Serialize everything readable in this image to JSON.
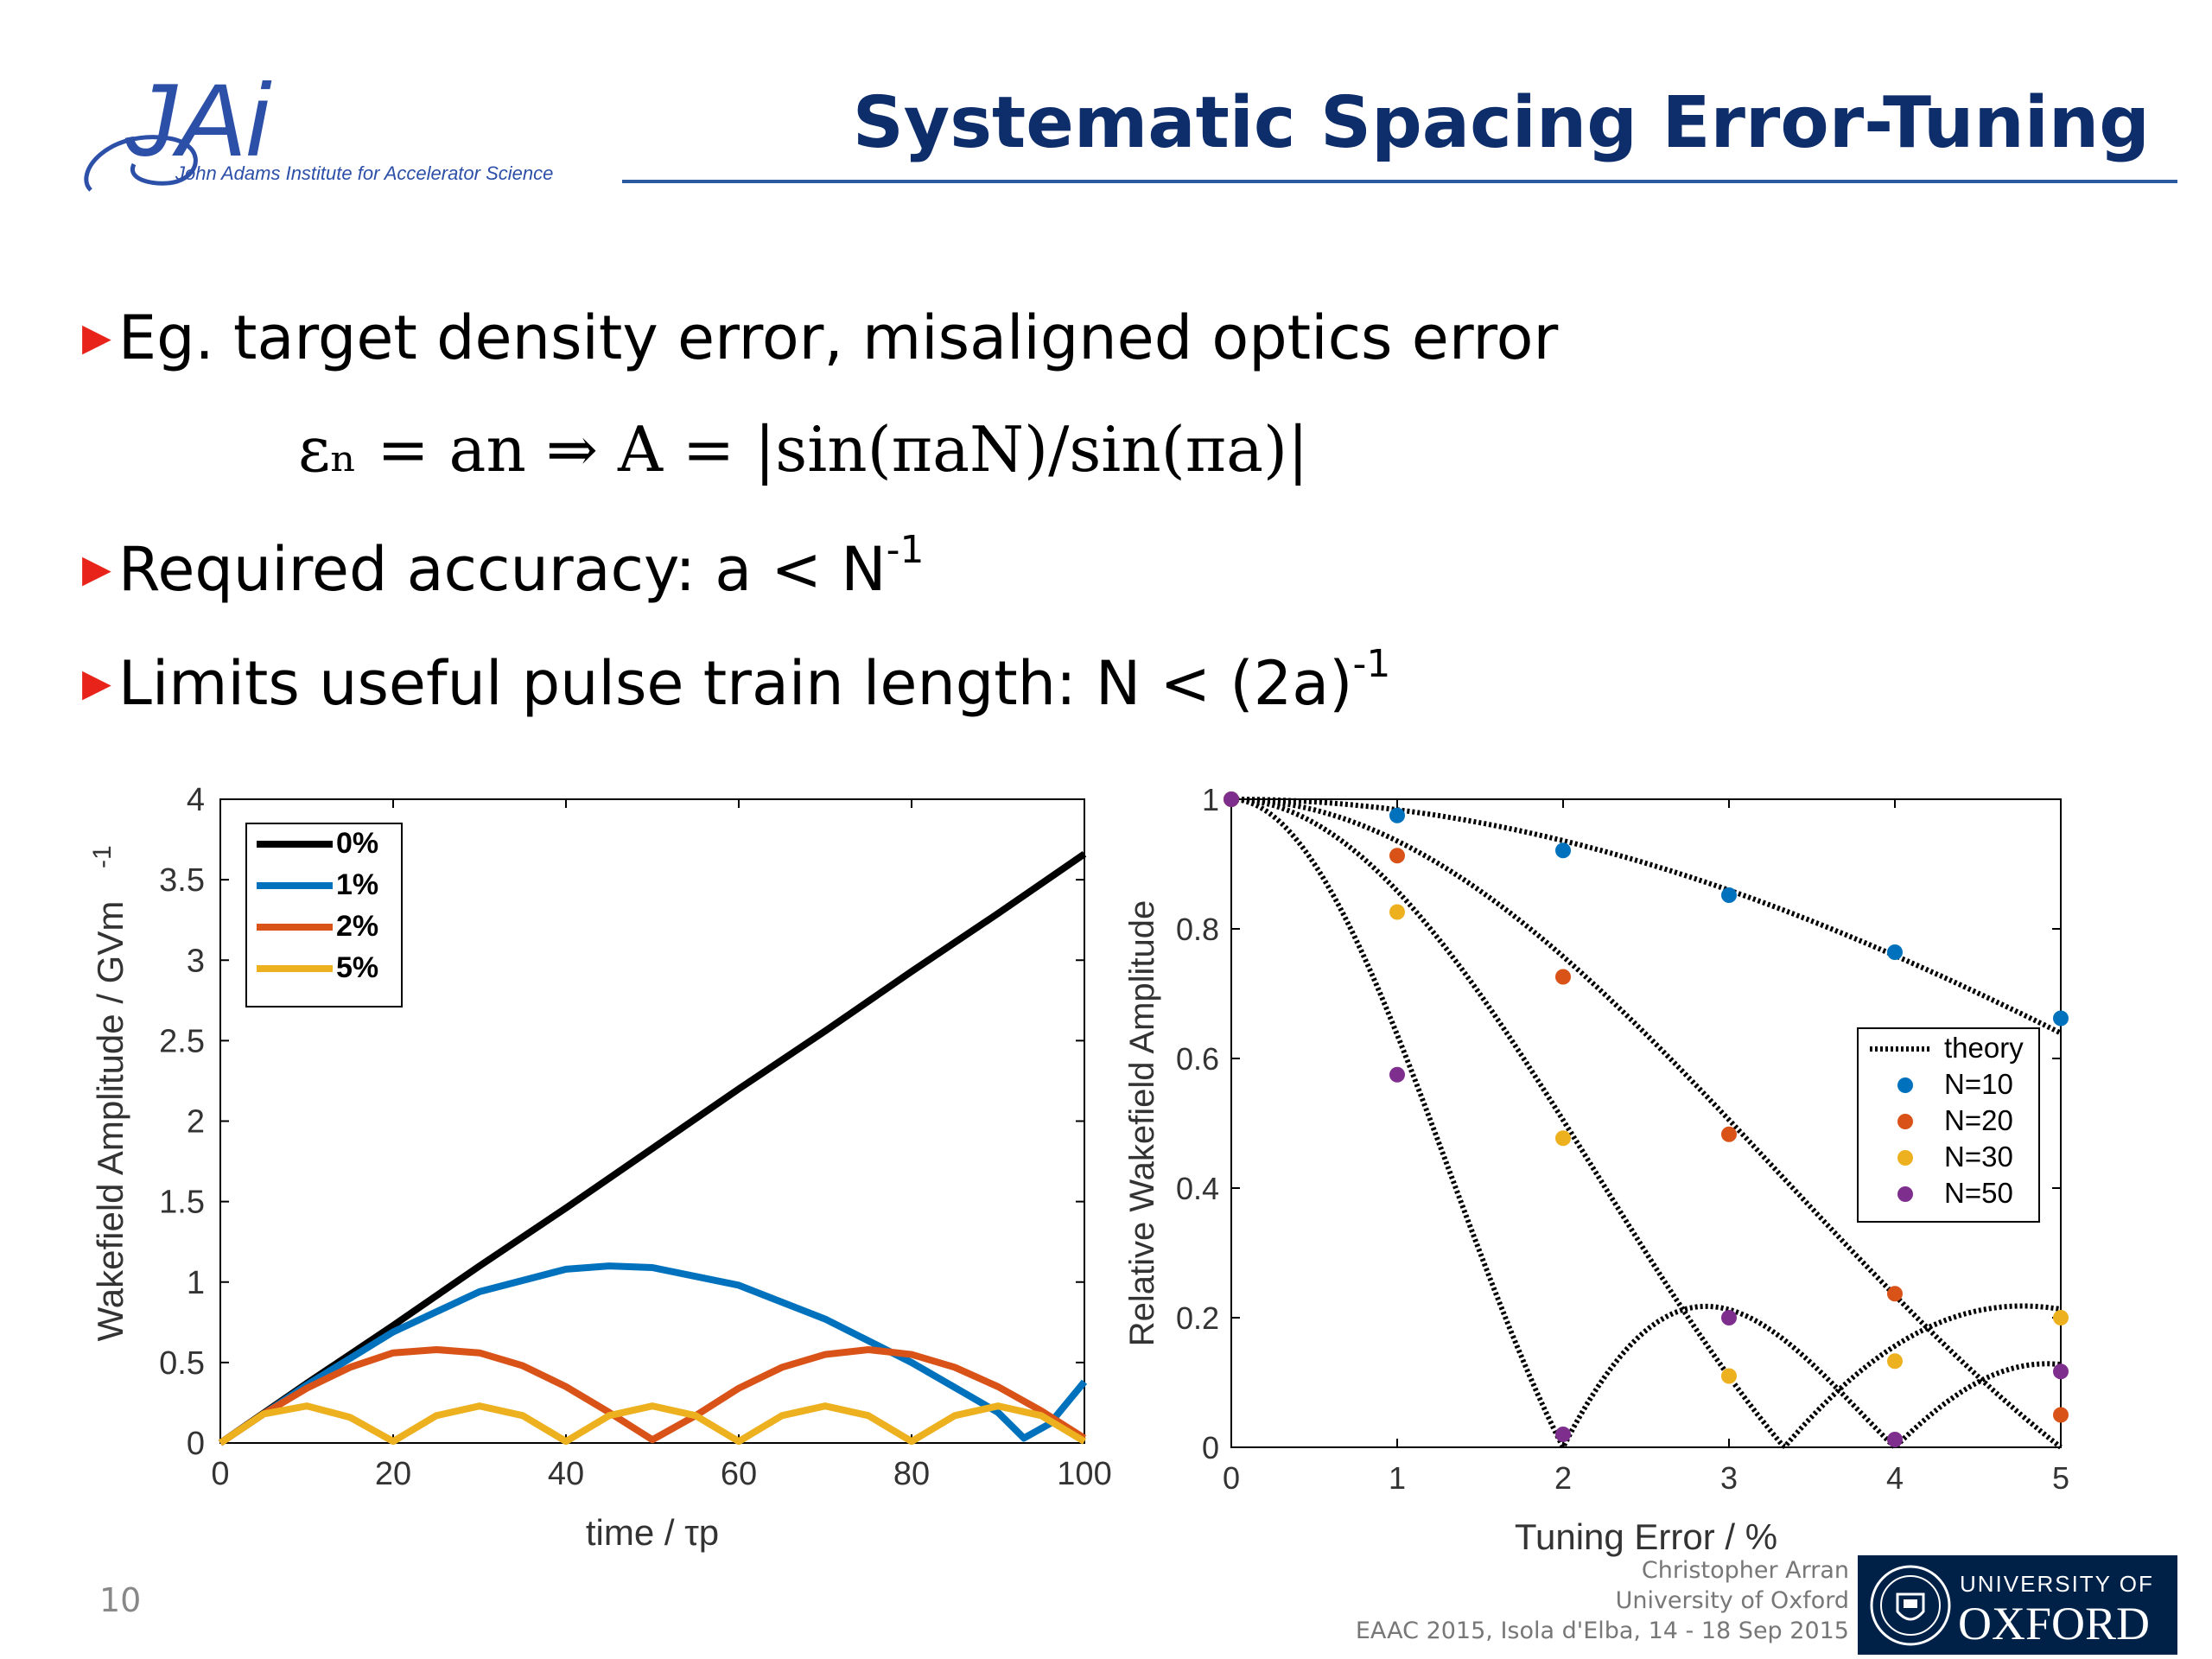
{
  "header": {
    "logo_text": "JAi",
    "logo_subtitle": "John Adams Institute for Accelerator Science",
    "title": "Systematic Spacing Error-Tuning"
  },
  "bullets": [
    {
      "text": "Eg. target density error, misaligned optics error",
      "superscript": ""
    },
    {
      "text": "Required accuracy: a < N",
      "superscript": "-1"
    },
    {
      "text": "Limits useful pulse train length: N < (2a)",
      "superscript": "-1"
    }
  ],
  "equation": {
    "text": "εₙ = an  ⇒ A = |sin(πaN)/sin(πa)|"
  },
  "chart_data": [
    {
      "type": "line",
      "title": "",
      "xlabel": "time /  τp",
      "ylabel": "Wakefield Amplitude / GVm",
      "ylabel_superscript": "-1",
      "xlim": [
        0,
        100
      ],
      "ylim": [
        0,
        4
      ],
      "xticks": [
        "0",
        "20",
        "40",
        "60",
        "80",
        "100"
      ],
      "yticks": [
        "0",
        "0.5",
        "1",
        "1.5",
        "2",
        "2.5",
        "3",
        "3.5",
        "4"
      ],
      "grid": false,
      "legend_position": "top-left",
      "series": [
        {
          "name": "0%",
          "color": "#000000",
          "x": [
            0,
            10,
            20,
            30,
            40,
            50,
            60,
            70,
            80,
            90,
            100
          ],
          "values": [
            0,
            0.37,
            0.73,
            1.1,
            1.46,
            1.83,
            2.2,
            2.56,
            2.93,
            3.29,
            3.66
          ]
        },
        {
          "name": "1%",
          "color": "#0072bd",
          "x": [
            0,
            10,
            20,
            30,
            40,
            45,
            50,
            60,
            70,
            80,
            90,
            93,
            96,
            100
          ],
          "values": [
            0,
            0.36,
            0.69,
            0.94,
            1.08,
            1.1,
            1.09,
            0.98,
            0.77,
            0.5,
            0.19,
            0.03,
            0.12,
            0.38
          ]
        },
        {
          "name": "2%",
          "color": "#d95319",
          "x": [
            0,
            5,
            10,
            15,
            20,
            25,
            30,
            35,
            40,
            45,
            50,
            55,
            60,
            65,
            70,
            75,
            80,
            85,
            90,
            95,
            100
          ],
          "values": [
            0,
            0.18,
            0.34,
            0.47,
            0.56,
            0.58,
            0.56,
            0.48,
            0.35,
            0.19,
            0.02,
            0.17,
            0.34,
            0.47,
            0.55,
            0.58,
            0.55,
            0.47,
            0.35,
            0.2,
            0.03
          ]
        },
        {
          "name": "5%",
          "color": "#edb120",
          "x": [
            0,
            5,
            10,
            15,
            20,
            25,
            30,
            35,
            40,
            45,
            50,
            55,
            60,
            65,
            70,
            75,
            80,
            85,
            90,
            95,
            100
          ],
          "values": [
            0,
            0.18,
            0.23,
            0.16,
            0.01,
            0.17,
            0.23,
            0.17,
            0.01,
            0.17,
            0.23,
            0.17,
            0.01,
            0.17,
            0.23,
            0.17,
            0.01,
            0.17,
            0.23,
            0.17,
            0.01
          ]
        }
      ]
    },
    {
      "type": "scatter",
      "title": "",
      "xlabel": "Tuning Error / %",
      "ylabel": "Relative Wakefield Amplitude",
      "xlim": [
        0,
        5
      ],
      "ylim": [
        0,
        1
      ],
      "xticks": [
        "0",
        "1",
        "2",
        "3",
        "4",
        "5"
      ],
      "yticks": [
        "0",
        "0.2",
        "0.4",
        "0.6",
        "0.8",
        "1"
      ],
      "grid": false,
      "legend_position": "right",
      "theory": {
        "name": "theory",
        "color": "#000000",
        "N": [
          10,
          20,
          30,
          50
        ]
      },
      "series": [
        {
          "name": "N=10",
          "color": "#0072bd",
          "x": [
            0,
            1,
            2,
            3,
            4,
            5
          ],
          "values": [
            1,
            0.975,
            0.921,
            0.852,
            0.764,
            0.662
          ]
        },
        {
          "name": "N=20",
          "color": "#d95319",
          "x": [
            0,
            1,
            2,
            3,
            4,
            5
          ],
          "values": [
            1,
            0.913,
            0.726,
            0.483,
            0.237,
            0.05
          ]
        },
        {
          "name": "N=30",
          "color": "#edb120",
          "x": [
            0,
            1,
            2,
            3,
            4,
            5
          ],
          "values": [
            1,
            0.826,
            0.477,
            0.11,
            0.133,
            0.2
          ]
        },
        {
          "name": "N=50",
          "color": "#7e2f8e",
          "x": [
            0,
            1,
            2,
            3,
            4,
            5
          ],
          "values": [
            1,
            0.575,
            0.02,
            0.2,
            0.012,
            0.117
          ]
        }
      ]
    }
  ],
  "footer": {
    "page_number": "10",
    "author": "Christopher Arran",
    "affiliation": "University of Oxford",
    "event": "EAAC 2015, Isola d'Elba, 14 - 18 Sep 2015",
    "oxford_line1": "UNIVERSITY OF",
    "oxford_line2": "OXFORD"
  }
}
